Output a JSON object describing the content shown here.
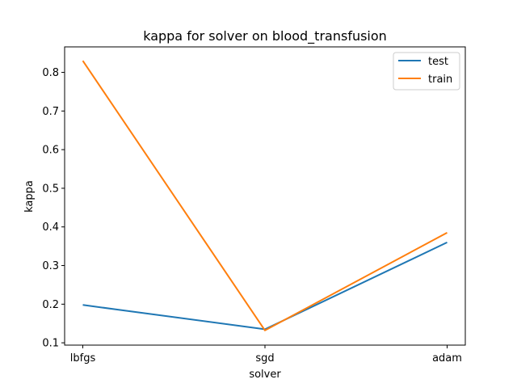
{
  "chart_data": {
    "type": "line",
    "title": "kappa for solver on  blood_transfusion",
    "xlabel": "solver",
    "ylabel": "kappa",
    "categories": [
      "lbfgs",
      "sgd",
      "adam"
    ],
    "ylim": [
      0.094,
      0.866
    ],
    "yticks": [
      0.1,
      0.2,
      0.3,
      0.4,
      0.5,
      0.6,
      0.7,
      0.8
    ],
    "ytick_labels": [
      "0.1",
      "0.2",
      "0.3",
      "0.4",
      "0.5",
      "0.6",
      "0.7",
      "0.8"
    ],
    "grid": false,
    "legend_position": "top-right",
    "series": [
      {
        "name": "test",
        "color": "#1f77b4",
        "values": [
          0.198,
          0.135,
          0.36
        ]
      },
      {
        "name": "train",
        "color": "#ff7f0e",
        "values": [
          0.83,
          0.132,
          0.385
        ]
      }
    ]
  }
}
